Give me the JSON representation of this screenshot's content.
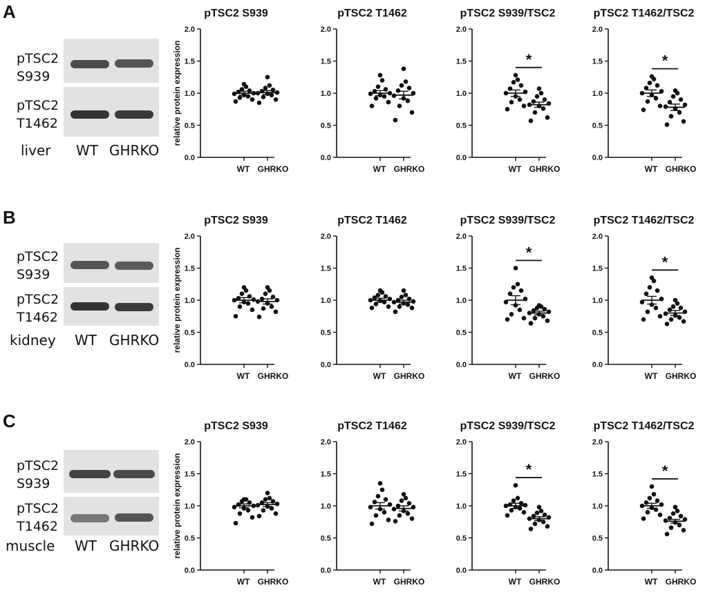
{
  "panels": [
    {
      "letter": "A",
      "tissue": "liver",
      "blots": [
        "pTSC2\nS939",
        "pTSC2\nT1462"
      ],
      "lanes": [
        "WT",
        "GHRKO"
      ]
    },
    {
      "letter": "B",
      "tissue": "kidney",
      "blots": [
        "pTSC2\nS939",
        "pTSC2\nT1462"
      ],
      "lanes": [
        "WT",
        "GHRKO"
      ]
    },
    {
      "letter": "C",
      "tissue": "muscle",
      "blots": [
        "pTSC2\nS939",
        "pTSC2\nT1462"
      ],
      "lanes": [
        "WT",
        "GHRKO"
      ]
    }
  ],
  "chart_data": [
    {
      "panel": "A",
      "type": "scatter",
      "title": "pTSC2 S939",
      "ylabel": "relative protein expression",
      "categories": [
        "WT",
        "GHRKO"
      ],
      "ylim": [
        0,
        2.0
      ],
      "yticks": [
        "0.0",
        "0.5",
        "1.0",
        "1.5",
        "2.0"
      ],
      "series": [
        {
          "name": "WT",
          "mean": 1.0,
          "sem": 0.03,
          "values": [
            0.87,
            0.9,
            0.93,
            0.95,
            0.97,
            0.99,
            1.0,
            1.02,
            1.04,
            1.06,
            1.1,
            1.14
          ]
        },
        {
          "name": "GHRKO",
          "mean": 1.01,
          "sem": 0.03,
          "values": [
            0.85,
            0.9,
            0.94,
            0.97,
            0.99,
            1.0,
            1.01,
            1.03,
            1.05,
            1.08,
            1.12,
            1.25
          ]
        }
      ],
      "significance": null
    },
    {
      "panel": "A",
      "type": "scatter",
      "title": "pTSC2 T1462",
      "ylabel": "",
      "categories": [
        "WT",
        "GHRKO"
      ],
      "ylim": [
        0,
        2.0
      ],
      "yticks": [
        "0.0",
        "0.5",
        "1.0",
        "1.5",
        "2.0"
      ],
      "series": [
        {
          "name": "WT",
          "mean": 1.0,
          "sem": 0.04,
          "values": [
            0.8,
            0.86,
            0.92,
            0.95,
            0.97,
            0.99,
            1.0,
            1.03,
            1.06,
            1.1,
            1.2,
            1.28
          ]
        },
        {
          "name": "GHRKO",
          "mean": 0.97,
          "sem": 0.06,
          "values": [
            0.58,
            0.7,
            0.8,
            0.88,
            0.92,
            0.96,
            1.0,
            1.04,
            1.08,
            1.12,
            1.18,
            1.38
          ]
        }
      ],
      "significance": null
    },
    {
      "panel": "A",
      "type": "scatter",
      "title": "pTSC2 S939/TSC2",
      "ylabel": "",
      "categories": [
        "WT",
        "GHRKO"
      ],
      "ylim": [
        0,
        2.0
      ],
      "yticks": [
        "0.0",
        "0.5",
        "1.0",
        "1.5",
        "2.0"
      ],
      "series": [
        {
          "name": "WT",
          "mean": 1.0,
          "sem": 0.05,
          "values": [
            0.75,
            0.8,
            0.86,
            0.9,
            0.95,
            1.0,
            1.02,
            1.07,
            1.12,
            1.17,
            1.21,
            1.28
          ]
        },
        {
          "name": "GHRKO",
          "mean": 0.82,
          "sem": 0.04,
          "values": [
            0.57,
            0.62,
            0.7,
            0.76,
            0.8,
            0.82,
            0.84,
            0.87,
            0.9,
            0.95,
            1.0,
            1.07
          ]
        }
      ],
      "significance": "*"
    },
    {
      "panel": "A",
      "type": "scatter",
      "title": "pTSC2 T1462/TSC2",
      "ylabel": "",
      "categories": [
        "WT",
        "GHRKO"
      ],
      "ylim": [
        0,
        2.0
      ],
      "yticks": [
        "0.0",
        "0.5",
        "1.0",
        "1.5",
        "2.0"
      ],
      "series": [
        {
          "name": "WT",
          "mean": 1.0,
          "sem": 0.05,
          "values": [
            0.74,
            0.8,
            0.87,
            0.92,
            0.97,
            1.0,
            1.03,
            1.08,
            1.12,
            1.16,
            1.22,
            1.26
          ]
        },
        {
          "name": "GHRKO",
          "mean": 0.78,
          "sem": 0.05,
          "values": [
            0.51,
            0.56,
            0.64,
            0.7,
            0.76,
            0.79,
            0.82,
            0.86,
            0.9,
            0.95,
            1.0,
            1.04
          ]
        }
      ],
      "significance": "*"
    },
    {
      "panel": "B",
      "type": "scatter",
      "title": "pTSC2 S939",
      "ylabel": "relative protein expression",
      "categories": [
        "WT",
        "GHRKO"
      ],
      "ylim": [
        0,
        2.0
      ],
      "yticks": [
        "0.0",
        "0.5",
        "1.0",
        "1.5",
        "2.0"
      ],
      "series": [
        {
          "name": "WT",
          "mean": 1.0,
          "sem": 0.04,
          "values": [
            0.75,
            0.85,
            0.9,
            0.95,
            0.97,
            1.0,
            1.01,
            1.03,
            1.06,
            1.1,
            1.15,
            1.2
          ]
        },
        {
          "name": "GHRKO",
          "mean": 0.98,
          "sem": 0.04,
          "values": [
            0.74,
            0.82,
            0.87,
            0.9,
            0.95,
            0.98,
            1.0,
            1.02,
            1.05,
            1.1,
            1.15,
            1.2
          ]
        }
      ],
      "significance": null
    },
    {
      "panel": "B",
      "type": "scatter",
      "title": "pTSC2 T1462",
      "ylabel": "",
      "categories": [
        "WT",
        "GHRKO"
      ],
      "ylim": [
        0,
        2.0
      ],
      "yticks": [
        "0.0",
        "0.5",
        "1.0",
        "1.5",
        "2.0"
      ],
      "series": [
        {
          "name": "WT",
          "mean": 1.0,
          "sem": 0.03,
          "values": [
            0.88,
            0.9,
            0.94,
            0.97,
            0.99,
            1.0,
            1.02,
            1.04,
            1.06,
            1.08,
            1.12,
            1.15
          ]
        },
        {
          "name": "GHRKO",
          "mean": 0.97,
          "sem": 0.03,
          "values": [
            0.82,
            0.88,
            0.9,
            0.93,
            0.95,
            0.97,
            0.98,
            1.0,
            1.02,
            1.05,
            1.08,
            1.15
          ]
        }
      ],
      "significance": null
    },
    {
      "panel": "B",
      "type": "scatter",
      "title": "pTSC2 S939/TSC2",
      "ylabel": "",
      "categories": [
        "WT",
        "GHRKO"
      ],
      "ylim": [
        0,
        2.0
      ],
      "yticks": [
        "0.0",
        "0.5",
        "1.0",
        "1.5",
        "2.0"
      ],
      "series": [
        {
          "name": "WT",
          "mean": 1.0,
          "sem": 0.07,
          "values": [
            0.7,
            0.72,
            0.78,
            0.85,
            0.92,
            0.97,
            1.02,
            1.1,
            1.15,
            1.2,
            1.25,
            1.5
          ]
        },
        {
          "name": "GHRKO",
          "mean": 0.8,
          "sem": 0.03,
          "values": [
            0.64,
            0.68,
            0.72,
            0.75,
            0.78,
            0.8,
            0.82,
            0.84,
            0.86,
            0.88,
            0.9,
            0.92
          ]
        }
      ],
      "significance": "*"
    },
    {
      "panel": "B",
      "type": "scatter",
      "title": "pTSC2 T1462/TSC2",
      "ylabel": "",
      "categories": [
        "WT",
        "GHRKO"
      ],
      "ylim": [
        0,
        2.0
      ],
      "yticks": [
        "0.0",
        "0.5",
        "1.0",
        "1.5",
        "2.0"
      ],
      "series": [
        {
          "name": "WT",
          "mean": 1.0,
          "sem": 0.06,
          "values": [
            0.7,
            0.75,
            0.82,
            0.88,
            0.93,
            0.97,
            1.02,
            1.1,
            1.15,
            1.2,
            1.3,
            1.35
          ]
        },
        {
          "name": "GHRKO",
          "mean": 0.8,
          "sem": 0.04,
          "values": [
            0.63,
            0.67,
            0.7,
            0.73,
            0.76,
            0.79,
            0.82,
            0.85,
            0.88,
            0.9,
            0.95,
            1.0
          ]
        }
      ],
      "significance": "*"
    },
    {
      "panel": "C",
      "type": "scatter",
      "title": "pTSC2 S939",
      "ylabel": "relative protein expression",
      "categories": [
        "WT",
        "GHRKO"
      ],
      "ylim": [
        0,
        2.0
      ],
      "yticks": [
        "0.0",
        "0.5",
        "1.0",
        "1.5",
        "2.0"
      ],
      "series": [
        {
          "name": "WT",
          "mean": 1.0,
          "sem": 0.03,
          "values": [
            0.73,
            0.82,
            0.88,
            0.93,
            0.96,
            0.98,
            1.0,
            1.02,
            1.05,
            1.07,
            1.1,
            1.1
          ]
        },
        {
          "name": "GHRKO",
          "mean": 1.02,
          "sem": 0.03,
          "values": [
            0.84,
            0.88,
            0.93,
            0.96,
            0.99,
            1.01,
            1.03,
            1.05,
            1.07,
            1.1,
            1.12,
            1.2
          ]
        }
      ],
      "significance": null
    },
    {
      "panel": "C",
      "type": "scatter",
      "title": "pTSC2 T1462",
      "ylabel": "",
      "categories": [
        "WT",
        "GHRKO"
      ],
      "ylim": [
        0,
        2.0
      ],
      "yticks": [
        "0.0",
        "0.5",
        "1.0",
        "1.5",
        "2.0"
      ],
      "series": [
        {
          "name": "WT",
          "mean": 1.0,
          "sem": 0.05,
          "values": [
            0.72,
            0.78,
            0.85,
            0.9,
            0.95,
            0.98,
            1.02,
            1.06,
            1.1,
            1.15,
            1.25,
            1.35
          ]
        },
        {
          "name": "GHRKO",
          "mean": 0.96,
          "sem": 0.04,
          "values": [
            0.76,
            0.8,
            0.85,
            0.88,
            0.92,
            0.95,
            0.98,
            1.0,
            1.04,
            1.08,
            1.12,
            1.18
          ]
        }
      ],
      "significance": null
    },
    {
      "panel": "C",
      "type": "scatter",
      "title": "pTSC2 S939/TSC2",
      "ylabel": "",
      "categories": [
        "WT",
        "GHRKO"
      ],
      "ylim": [
        0,
        2.0
      ],
      "yticks": [
        "0.0",
        "0.5",
        "1.0",
        "1.5",
        "2.0"
      ],
      "series": [
        {
          "name": "WT",
          "mean": 1.0,
          "sem": 0.04,
          "values": [
            0.85,
            0.9,
            0.93,
            0.96,
            0.98,
            1.0,
            1.01,
            1.02,
            1.04,
            1.08,
            1.12,
            1.32
          ]
        },
        {
          "name": "GHRKO",
          "mean": 0.8,
          "sem": 0.03,
          "values": [
            0.64,
            0.68,
            0.72,
            0.75,
            0.78,
            0.8,
            0.82,
            0.84,
            0.86,
            0.89,
            0.92,
            0.98
          ]
        }
      ],
      "significance": "*"
    },
    {
      "panel": "C",
      "type": "scatter",
      "title": "pTSC2 T1462/TSC2",
      "ylabel": "",
      "categories": [
        "WT",
        "GHRKO"
      ],
      "ylim": [
        0,
        2.0
      ],
      "yticks": [
        "0.0",
        "0.5",
        "1.0",
        "1.5",
        "2.0"
      ],
      "series": [
        {
          "name": "WT",
          "mean": 1.0,
          "sem": 0.04,
          "values": [
            0.8,
            0.86,
            0.9,
            0.94,
            0.97,
            1.0,
            1.02,
            1.05,
            1.08,
            1.12,
            1.18,
            1.3
          ]
        },
        {
          "name": "GHRKO",
          "mean": 0.76,
          "sem": 0.03,
          "values": [
            0.56,
            0.62,
            0.66,
            0.7,
            0.74,
            0.77,
            0.79,
            0.81,
            0.84,
            0.88,
            0.92,
            0.98
          ]
        }
      ],
      "significance": "*"
    }
  ]
}
